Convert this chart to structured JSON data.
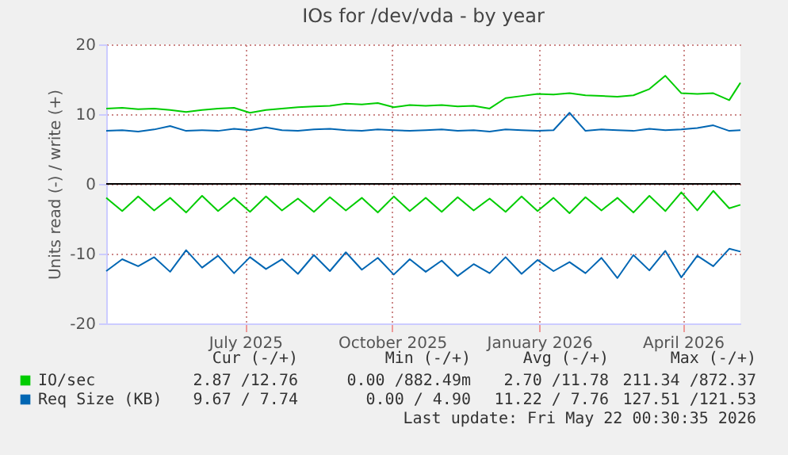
{
  "chart_data": {
    "type": "line",
    "title": "IOs for /dev/vda - by year",
    "ylabel": "Units read (-) / write (+)",
    "x": [
      "2025-04-20",
      "2025-04-30",
      "2025-05-10",
      "2025-05-20",
      "2025-05-30",
      "2025-06-09",
      "2025-06-19",
      "2025-06-29",
      "2025-07-09",
      "2025-07-19",
      "2025-07-29",
      "2025-08-08",
      "2025-08-18",
      "2025-08-28",
      "2025-09-07",
      "2025-09-17",
      "2025-09-27",
      "2025-10-07",
      "2025-10-17",
      "2025-10-27",
      "2025-11-06",
      "2025-11-16",
      "2025-11-26",
      "2025-12-06",
      "2025-12-16",
      "2025-12-26",
      "2026-01-05",
      "2026-01-15",
      "2026-01-25",
      "2026-02-04",
      "2026-02-14",
      "2026-02-24",
      "2026-03-06",
      "2026-03-16",
      "2026-03-26",
      "2026-04-05",
      "2026-04-15",
      "2026-04-25",
      "2026-05-05",
      "2026-05-15",
      "2026-05-22"
    ],
    "series": [
      {
        "name": "IO/sec",
        "color": "#00cc00",
        "values": [
          10.8,
          10.9,
          10.7,
          10.8,
          10.6,
          10.3,
          10.6,
          10.8,
          10.9,
          10.2,
          10.6,
          10.8,
          11.0,
          11.1,
          11.2,
          11.5,
          11.4,
          11.6,
          11.0,
          11.3,
          11.2,
          11.3,
          11.1,
          11.2,
          10.8,
          12.3,
          12.6,
          12.9,
          12.8,
          13.0,
          12.7,
          12.6,
          12.5,
          12.7,
          13.6,
          15.5,
          13.0,
          12.9,
          13.0,
          12.0,
          14.5
        ]
      },
      {
        "color": "#00cc00",
        "values": [
          -2.0,
          -3.9,
          -1.8,
          -3.8,
          -2.0,
          -4.1,
          -1.7,
          -3.9,
          -2.0,
          -4.0,
          -1.8,
          -3.8,
          -2.1,
          -4.0,
          -1.9,
          -3.8,
          -2.0,
          -4.1,
          -1.8,
          -3.9,
          -2.0,
          -4.0,
          -1.9,
          -3.8,
          -2.1,
          -4.0,
          -1.8,
          -3.9,
          -2.0,
          -4.2,
          -1.9,
          -3.8,
          -2.0,
          -4.1,
          -1.7,
          -3.9,
          -1.2,
          -3.8,
          -1.0,
          -3.5,
          -3.0
        ]
      },
      {
        "name": "Req Size (KB)",
        "color": "#0066b3",
        "values": [
          7.6,
          7.7,
          7.5,
          7.8,
          8.3,
          7.6,
          7.7,
          7.6,
          7.9,
          7.7,
          8.1,
          7.7,
          7.6,
          7.8,
          7.9,
          7.7,
          7.6,
          7.8,
          7.7,
          7.6,
          7.7,
          7.8,
          7.6,
          7.7,
          7.5,
          7.8,
          7.7,
          7.6,
          7.7,
          10.2,
          7.6,
          7.8,
          7.7,
          7.6,
          7.9,
          7.7,
          7.8,
          8.0,
          8.4,
          7.6,
          7.7
        ]
      },
      {
        "color": "#0066b3",
        "values": [
          -12.5,
          -10.8,
          -11.8,
          -10.5,
          -12.6,
          -9.5,
          -12.0,
          -10.3,
          -12.8,
          -10.5,
          -12.2,
          -10.8,
          -12.9,
          -10.2,
          -12.5,
          -9.8,
          -12.3,
          -10.6,
          -13.0,
          -10.8,
          -12.6,
          -11.0,
          -13.2,
          -11.5,
          -12.8,
          -10.5,
          -12.9,
          -10.9,
          -12.5,
          -11.2,
          -12.8,
          -10.6,
          -13.5,
          -10.2,
          -12.4,
          -9.6,
          -13.4,
          -10.3,
          -11.8,
          -9.3,
          -9.7
        ]
      }
    ],
    "xlim": [
      "2025-04-20",
      "2026-05-22"
    ],
    "xticks": [
      {
        "value": "2025-07-16",
        "label": "July 2025"
      },
      {
        "value": "2025-10-16",
        "label": "October 2025"
      },
      {
        "value": "2026-01-16",
        "label": "January 2026"
      },
      {
        "value": "2026-04-16",
        "label": "April 2026"
      }
    ],
    "ylim": [
      -20,
      20
    ],
    "yticks": [
      -20,
      -10,
      0,
      10,
      20
    ],
    "grid": true,
    "legend": "bottom",
    "ref_lines": [
      {
        "axis": "y",
        "value": 0,
        "color": "#000000"
      }
    ],
    "annotations": [
      "Cur (-/+)",
      "Min (-/+)",
      "Avg (-/+)",
      "Max (-/+)",
      "2.87 /12.76",
      "0.00 /882.49m",
      "2.70 /11.78",
      "211.34 /872.37",
      "9.67 / 7.74",
      "0.00 / 4.90",
      "11.22 / 7.76",
      "127.51 /121.53",
      "Last update: Fri May 22 00:30:35 2026"
    ]
  }
}
